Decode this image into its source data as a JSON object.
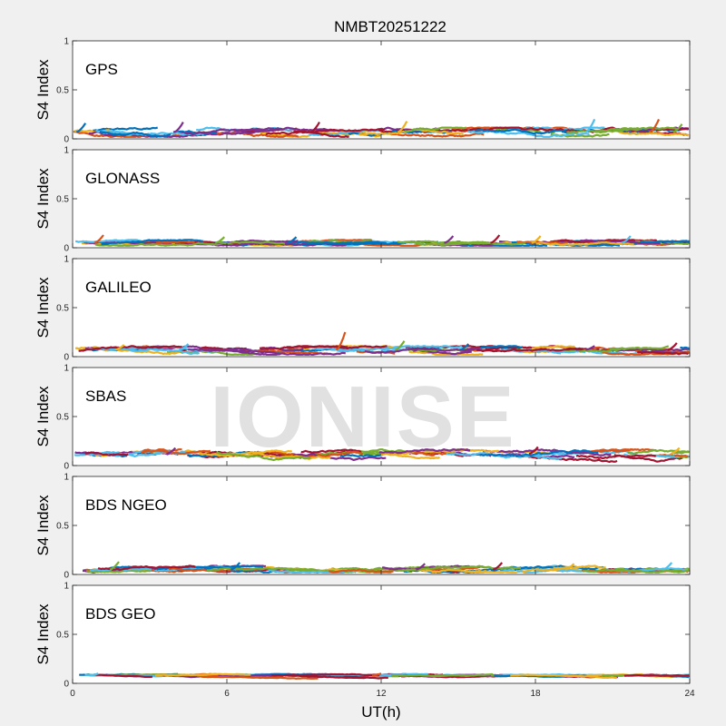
{
  "title": "NMBT20251222",
  "watermark": "IONISE",
  "xlabel": "UT(h)",
  "ylabel": "S4 Index",
  "xticks": [
    "0",
    "6",
    "12",
    "18",
    "24"
  ],
  "yticks": [
    "0",
    "0.5",
    "1"
  ],
  "colors": [
    "#0072BD",
    "#D95319",
    "#EDB120",
    "#7E2F8E",
    "#77AC30",
    "#4DBEEE",
    "#A2142F"
  ],
  "chart_data": [
    {
      "type": "line",
      "title": "GPS",
      "xlim": [
        0,
        24
      ],
      "ylim": [
        0,
        1
      ],
      "grid": "off",
      "series_summary": {
        "baseline": 0.07,
        "variation": 0.03,
        "peaks": [
          [
            0.5,
            0.16
          ],
          [
            4.3,
            0.17
          ],
          [
            9.6,
            0.17
          ],
          [
            13.0,
            0.18
          ],
          [
            20.3,
            0.2
          ],
          [
            22.8,
            0.2
          ],
          [
            23.7,
            0.15
          ]
        ]
      }
    },
    {
      "type": "line",
      "title": "GLONASS",
      "xlim": [
        0,
        24
      ],
      "ylim": [
        0,
        1
      ],
      "grid": "off",
      "series_summary": {
        "baseline": 0.05,
        "variation": 0.02,
        "peaks": [
          [
            1.2,
            0.13
          ],
          [
            5.9,
            0.11
          ],
          [
            8.7,
            0.11
          ],
          [
            14.8,
            0.12
          ],
          [
            16.6,
            0.13
          ],
          [
            18.2,
            0.12
          ],
          [
            21.7,
            0.12
          ]
        ]
      }
    },
    {
      "type": "line",
      "title": "GALILEO",
      "xlim": [
        0,
        24
      ],
      "ylim": [
        0,
        1
      ],
      "grid": "off",
      "series_summary": {
        "baseline": 0.07,
        "variation": 0.025,
        "peaks": [
          [
            2.0,
            0.12
          ],
          [
            4.5,
            0.13
          ],
          [
            10.6,
            0.25
          ],
          [
            12.9,
            0.16
          ],
          [
            15.4,
            0.13
          ],
          [
            20.3,
            0.11
          ],
          [
            23.5,
            0.14
          ]
        ]
      }
    },
    {
      "type": "line",
      "title": "SBAS",
      "xlim": [
        0,
        24
      ],
      "ylim": [
        0,
        1
      ],
      "grid": "off",
      "series_summary": {
        "baseline": 0.12,
        "variation": 0.03,
        "peaks": [
          [
            4.0,
            0.18
          ],
          [
            18.1,
            0.19
          ],
          [
            23.6,
            0.18
          ]
        ]
      }
    },
    {
      "type": "line",
      "title": "BDS NGEO",
      "xlim": [
        0,
        24
      ],
      "ylim": [
        0,
        1
      ],
      "grid": "off",
      "series_summary": {
        "baseline": 0.05,
        "variation": 0.025,
        "peaks": [
          [
            1.8,
            0.13
          ],
          [
            6.5,
            0.12
          ],
          [
            13.7,
            0.11
          ],
          [
            16.7,
            0.12
          ],
          [
            19.5,
            0.11
          ],
          [
            23.3,
            0.12
          ]
        ]
      }
    },
    {
      "type": "line",
      "title": "BDS GEO",
      "xlim": [
        0,
        24
      ],
      "ylim": [
        0,
        1
      ],
      "grid": "off",
      "series_summary": {
        "baseline": 0.08,
        "variation": 0.01,
        "peaks": [
          [
            1.0,
            0.1
          ],
          [
            12.0,
            0.1
          ]
        ]
      }
    }
  ]
}
